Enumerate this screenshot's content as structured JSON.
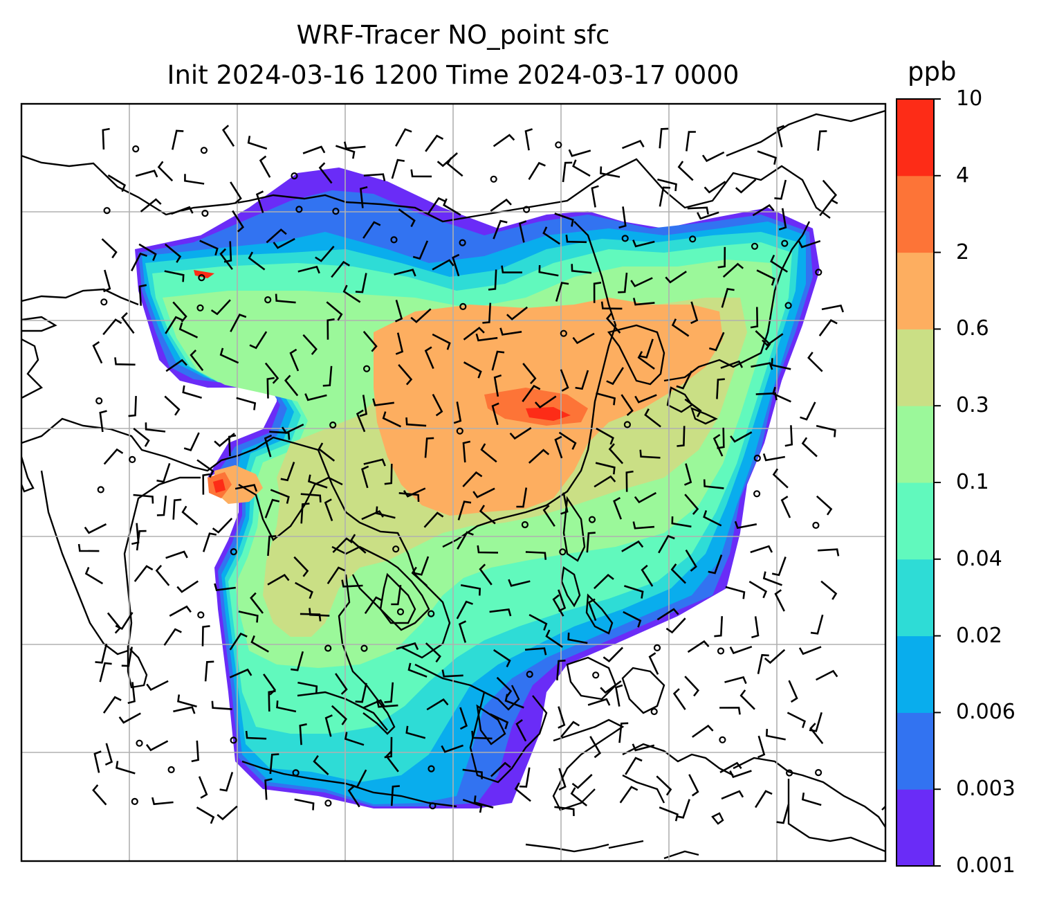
{
  "title": {
    "line1": "WRF-Tracer NO_point sfc",
    "line2": "Init 2024-03-16 1200 Time 2024-03-17 0000"
  },
  "colorbar": {
    "unit": "ppb",
    "ticks": [
      "0.001",
      "0.003",
      "0.006",
      "0.02",
      "0.04",
      "0.1",
      "0.3",
      "0.6",
      "2",
      "4",
      "10"
    ],
    "colors": [
      "#6a2cf7",
      "#3273f1",
      "#09aded",
      "#2edcd6",
      "#61f9bd",
      "#9bf89a",
      "#cadf85",
      "#fdae60",
      "#fd7437",
      "#fd2c17"
    ]
  },
  "map": {
    "content": "concentration field with surface wind barbs and coastlines",
    "grid": true,
    "barb_color": "#000000",
    "coast_color": "#000000"
  }
}
